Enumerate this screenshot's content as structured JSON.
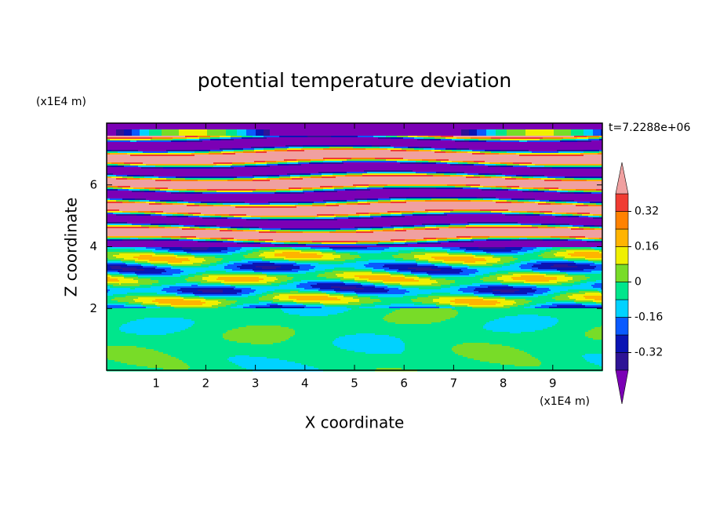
{
  "chart_data": {
    "type": "contour",
    "title": "potential temperature deviation",
    "x_label": "X coordinate",
    "y_label": "Z coordinate",
    "x_unit": "(x1E4 m)",
    "y_unit": "(x1E4 m)",
    "annotation": "t=7.2288e+06",
    "xlim": [
      0,
      10
    ],
    "xticks": [
      1,
      2,
      3,
      4,
      5,
      6,
      7,
      8,
      9
    ],
    "ylim": [
      0,
      8
    ],
    "yticks": [
      2,
      4,
      6
    ],
    "levels": [
      -0.4,
      -0.32,
      -0.24,
      -0.16,
      -0.08,
      0,
      0.08,
      0.16,
      0.24,
      0.32,
      0.4
    ],
    "colors": [
      "#7b00b5",
      "#2e1496",
      "#0a14b4",
      "#0a5aff",
      "#00d2ff",
      "#00e68c",
      "#78dc28",
      "#f0f000",
      "#ffb400",
      "#ff8200",
      "#f03c32",
      "#f0a0a0"
    ],
    "colorbar_ticks": [
      -0.32,
      -0.16,
      0,
      0.16,
      0.32
    ]
  }
}
